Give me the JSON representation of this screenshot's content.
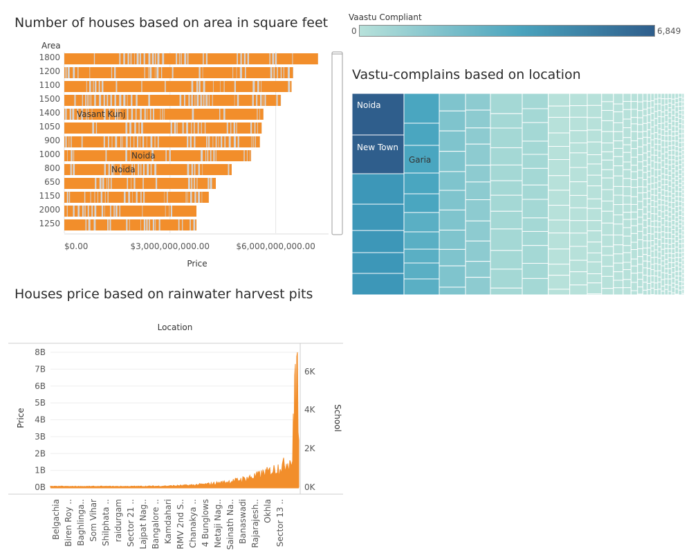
{
  "chart_data": [
    {
      "type": "bar",
      "title": "Number of houses based on area in square feet",
      "ylabel": "Area",
      "xlabel": "Price",
      "categories": [
        "1800",
        "1200",
        "1100",
        "1500",
        "1400",
        "1050",
        "900",
        "1000",
        "800",
        "650",
        "1150",
        "2000",
        "1250"
      ],
      "values": [
        7200000000,
        6500000000,
        6450000000,
        6150000000,
        5650000000,
        5600000000,
        5550000000,
        5300000000,
        4750000000,
        4300000000,
        4100000000,
        3750000000,
        3750000000
      ],
      "x_ticks": [
        "$0.00",
        "$3,000,000,000.00",
        "$6,000,000,000.00"
      ],
      "xlim": [
        0,
        7500000000
      ],
      "annotations": [
        {
          "category": "1400",
          "text": "Vasant Kunj"
        },
        {
          "category": "1000",
          "text": "Noida"
        },
        {
          "category": "800",
          "text": "Noida"
        }
      ],
      "colors": {
        "primary": "#f28e2b",
        "secondary": "#d4d4d4"
      }
    },
    {
      "type": "heatmap",
      "title": "Vastu-complains based on location",
      "legend_title": "Vaastu Compliant",
      "legend_min": "0",
      "legend_max": "6,849",
      "labels": [
        "Noida",
        "New Town",
        "Garia"
      ],
      "colors": {
        "low": "#b7e1da",
        "mid": "#4aa3bd",
        "high": "#2f5e8c"
      }
    },
    {
      "type": "line",
      "title": "Houses price based on rainwater harvest pits",
      "top_label": "Location",
      "ylabel": "Price",
      "y2label": "School",
      "y_ticks": [
        "8B",
        "7B",
        "6B",
        "5B",
        "4B",
        "3B",
        "2B",
        "1B",
        "0B"
      ],
      "y2_ticks": [
        "6K",
        "4K",
        "2K",
        "0K"
      ],
      "ylim": [
        0,
        8500000000
      ],
      "categories": [
        "Belgachia",
        "Biren Roy ..",
        "Baghlinga..",
        "Som Vihar",
        "Shilphata ..",
        "raidurgam",
        "Sector 21 ..",
        "Lajpat Nag..",
        "Bangalore ..",
        "Kamdahari",
        "RMV 2nd S..",
        "Chanakya ..",
        "4 Bunglows",
        "Netaji Nag..",
        "Sainath Na..",
        "Banaswadi",
        "Rajarajesh..",
        "Okhla",
        "Sector 13 .."
      ],
      "colors": {
        "line": "#f28e2b"
      }
    }
  ]
}
